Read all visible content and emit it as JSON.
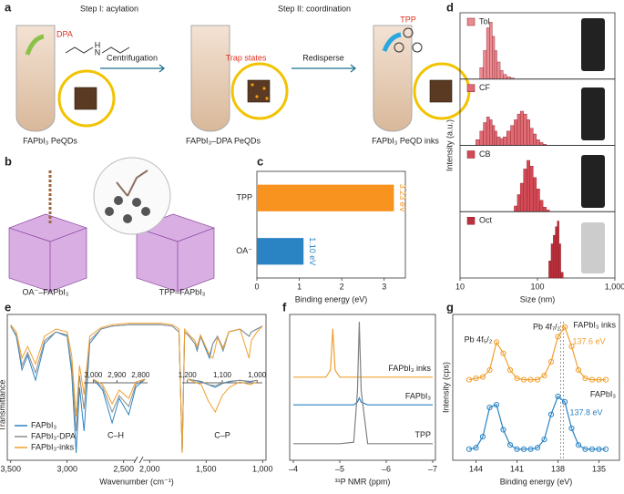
{
  "illustrations": {
    "a": {
      "panel": "a",
      "step1": "Step I: acylation",
      "step2": "Step II: coordination",
      "dpa": "DPA",
      "amine": "N",
      "amine_h": "H",
      "centrifugation": "Centrifugation",
      "trap_states": "Trap states",
      "redisperse": "Redisperse",
      "tpp": "TPP",
      "tube1": "FAPbI₃ PeQDs",
      "tube2": "FAPbI₃–DPA PeQDs",
      "tube3": "FAPbI₃ PeQD inks"
    },
    "b": {
      "panel": "b",
      "left": "OA⁻–FAPbI₃",
      "right": "TPP–FAPbI₃"
    }
  },
  "chart_data": [
    {
      "panel": "c",
      "type": "bar",
      "orientation": "horizontal",
      "categories": [
        "TPP",
        "OA⁻"
      ],
      "values": [
        3.23,
        1.1
      ],
      "value_labels": [
        "3.23 eV",
        "1.10 eV"
      ],
      "colors": [
        "#f7931e",
        "#2a84c3"
      ],
      "xlim": [
        0,
        3.5
      ],
      "xticks": [
        0,
        1,
        2,
        3
      ],
      "xlabel": "Binding energy (eV)"
    },
    {
      "panel": "d",
      "type": "histogram",
      "xscale": "log",
      "xlim": [
        10,
        1000
      ],
      "xticks": [
        10,
        100,
        {
          "value": 1000,
          "label": "1,000"
        }
      ],
      "ylim": [
        0,
        1.1
      ],
      "xlabel": "Size (nm)",
      "ylabel": "Intensity (a.u.)",
      "series": [
        {
          "name": "Tol",
          "color": "#e98b92",
          "bins": [
            18,
            20,
            22,
            24,
            26,
            28,
            30,
            33,
            36,
            40,
            45,
            50
          ],
          "values": [
            0.2,
            0.5,
            0.9,
            1.0,
            0.75,
            0.5,
            0.3,
            0.15,
            0.08,
            0.04,
            0.02
          ]
        },
        {
          "name": "CF",
          "color": "#df6b74",
          "bins": [
            16,
            18,
            20,
            22,
            24,
            26,
            28,
            30,
            33,
            36,
            40,
            45,
            50,
            55,
            60,
            66,
            73,
            80,
            88,
            97,
            107,
            118,
            130
          ],
          "values": [
            0.1,
            0.25,
            0.4,
            0.5,
            0.45,
            0.35,
            0.25,
            0.15,
            0.12,
            0.15,
            0.25,
            0.35,
            0.45,
            0.55,
            0.6,
            0.55,
            0.45,
            0.3,
            0.2,
            0.1,
            0.05,
            0.02
          ]
        },
        {
          "name": "CB",
          "color": "#d24a55",
          "bins": [
            50,
            55,
            60,
            66,
            73,
            80,
            88,
            97,
            107,
            118,
            130,
            143
          ],
          "values": [
            0.1,
            0.3,
            0.5,
            0.75,
            0.9,
            0.8,
            0.6,
            0.4,
            0.2,
            0.08,
            0.03
          ]
        },
        {
          "name": "Oct",
          "color": "#b9313c",
          "bins": [
            140,
            150,
            160,
            170,
            180,
            190,
            200,
            215
          ],
          "values": [
            0.3,
            0.6,
            0.75,
            0.9,
            1.0,
            0.6,
            0.1
          ]
        }
      ]
    },
    {
      "panel": "e",
      "type": "line",
      "xlim": [
        3530,
        970
      ],
      "axis_break": [
        2400,
        2050
      ],
      "xticks": [
        {
          "value": 3500,
          "label": "3,500"
        },
        {
          "value": 3000,
          "label": "3,000"
        },
        {
          "value": 2500,
          "label": "2,500"
        },
        {
          "value": 2000,
          "label": "2,000"
        },
        {
          "value": 1500,
          "label": "1,500"
        },
        {
          "value": 1000,
          "label": "1,000"
        }
      ],
      "ylim": [
        0,
        1
      ],
      "xlabel": "Wavenumber (cm⁻¹)",
      "ylabel": "Transmittance",
      "legend": "lower left",
      "x": [
        3500,
        3450,
        3400,
        3350,
        3280,
        3200,
        3100,
        3000,
        2960,
        2920,
        2890,
        2850,
        2800,
        2700,
        2600,
        2450,
        2000,
        1900,
        1800,
        1740,
        1712,
        1690,
        1650,
        1600,
        1580,
        1550,
        1470,
        1440,
        1400,
        1350,
        1300,
        1200,
        1120,
        1100,
        1050,
        1000
      ],
      "series": [
        {
          "name": "FAPbI₃",
          "color": "#2a84c3",
          "values": [
            0.92,
            0.85,
            0.62,
            0.72,
            0.55,
            0.8,
            0.88,
            0.85,
            0.6,
            0.05,
            0.5,
            0.2,
            0.8,
            0.9,
            0.92,
            0.93,
            0.93,
            0.93,
            0.92,
            0.88,
            0.05,
            0.88,
            0.85,
            0.8,
            0.75,
            0.85,
            0.7,
            0.8,
            0.85,
            0.75,
            0.88,
            0.9,
            0.85,
            0.88,
            0.9,
            0.92
          ]
        },
        {
          "name": "FAPbI₃-DPA",
          "color": "#8c8c8c",
          "values": [
            0.92,
            0.86,
            0.65,
            0.74,
            0.6,
            0.82,
            0.88,
            0.86,
            0.65,
            0.2,
            0.58,
            0.35,
            0.82,
            0.9,
            0.92,
            0.93,
            0.93,
            0.93,
            0.92,
            0.88,
            0.05,
            0.88,
            0.85,
            0.8,
            0.76,
            0.85,
            0.72,
            0.8,
            0.85,
            0.77,
            0.88,
            0.9,
            0.85,
            0.88,
            0.9,
            0.92
          ]
        },
        {
          "name": "FAPbI₃-inks",
          "color": "#f0a030",
          "values": [
            0.93,
            0.88,
            0.7,
            0.78,
            0.66,
            0.85,
            0.9,
            0.88,
            0.72,
            0.3,
            0.65,
            0.45,
            0.85,
            0.91,
            0.93,
            0.94,
            0.94,
            0.94,
            0.93,
            0.9,
            0.05,
            0.9,
            0.86,
            0.82,
            0.78,
            0.86,
            0.72,
            0.7,
            0.84,
            0.76,
            0.88,
            0.9,
            0.7,
            0.82,
            0.88,
            0.92
          ]
        }
      ],
      "insets": [
        {
          "label": "C–H",
          "xlim": [
            3040,
            2770
          ],
          "xticks": [
            {
              "value": 3000,
              "label": "3,000"
            },
            {
              "value": 2900,
              "label": "2,900"
            },
            {
              "value": 2800,
              "label": "2,800"
            }
          ],
          "x": [
            3000,
            2960,
            2920,
            2890,
            2850,
            2820,
            2780
          ],
          "values": [
            [
              0.9,
              0.7,
              0.1,
              0.55,
              0.25,
              0.75,
              0.9
            ],
            [
              0.9,
              0.75,
              0.3,
              0.6,
              0.4,
              0.8,
              0.9
            ],
            [
              0.9,
              0.8,
              0.45,
              0.7,
              0.55,
              0.85,
              0.9
            ]
          ]
        },
        {
          "label": "C–P",
          "xlim": [
            1215,
            985
          ],
          "xticks": [
            {
              "value": 1200,
              "label": "1,200"
            },
            {
              "value": 1100,
              "label": "1,100"
            },
            {
              "value": 1000,
              "label": "1,000"
            }
          ],
          "x": [
            1200,
            1160,
            1140,
            1120,
            1100,
            1080,
            1050,
            1020,
            1000
          ],
          "values": [
            [
              0.9,
              0.85,
              0.8,
              0.75,
              0.82,
              0.85,
              0.88,
              0.85,
              0.88
            ],
            [
              0.9,
              0.86,
              0.8,
              0.78,
              0.83,
              0.86,
              0.88,
              0.86,
              0.88
            ],
            [
              0.9,
              0.8,
              0.5,
              0.3,
              0.6,
              0.75,
              0.85,
              0.8,
              0.85
            ]
          ]
        }
      ]
    },
    {
      "panel": "f",
      "type": "line",
      "xlim": [
        -4,
        -7
      ],
      "xticks": [
        {
          "value": -4,
          "label": "–4"
        },
        {
          "value": -5,
          "label": "–5"
        },
        {
          "value": -6,
          "label": "–6"
        },
        {
          "value": -7,
          "label": "–7"
        }
      ],
      "ylim": [
        0,
        1
      ],
      "xlabel": "³¹P NMR (ppm)",
      "x": [
        -4,
        -4.7,
        -4.8,
        -4.85,
        -4.9,
        -5.0,
        -5.3,
        -5.38,
        -5.42,
        -5.46,
        -5.6,
        -7
      ],
      "series": [
        {
          "name": "FAPbI₃ inks",
          "color": "#f0a030",
          "values": [
            0.6,
            0.6,
            0.65,
            0.95,
            0.65,
            0.6,
            0.6,
            0.6,
            0.6,
            0.6,
            0.6,
            0.6
          ]
        },
        {
          "name": "FAPbI₃",
          "color": "#2a84c3",
          "values": [
            0.4,
            0.4,
            0.4,
            0.4,
            0.4,
            0.4,
            0.4,
            0.42,
            0.45,
            0.42,
            0.4,
            0.4
          ]
        },
        {
          "name": "TPP",
          "color": "#808080",
          "values": [
            0.12,
            0.12,
            0.12,
            0.12,
            0.12,
            0.12,
            0.13,
            0.5,
            1.0,
            0.5,
            0.12,
            0.12
          ]
        }
      ]
    },
    {
      "panel": "g",
      "type": "scatter",
      "xlim": [
        145.7,
        133.5
      ],
      "xticks": [
        144,
        141,
        138,
        135
      ],
      "ylim": [
        0,
        1.05
      ],
      "xlabel": "Binding energy (eV)",
      "ylabel": "Intensity (cps)",
      "x": [
        144.5,
        144,
        143.5,
        143,
        142.5,
        142,
        141.5,
        141,
        140.5,
        140,
        139.5,
        139,
        138.5,
        138,
        137.5,
        137,
        136.5,
        136,
        135.5,
        135,
        134.5
      ],
      "series": [
        {
          "name": "FAPbI₃ inks",
          "color": "#f0a030",
          "values": [
            0.58,
            0.59,
            0.6,
            0.65,
            0.85,
            0.77,
            0.65,
            0.59,
            0.58,
            0.58,
            0.58,
            0.61,
            0.71,
            0.89,
            0.96,
            0.82,
            0.65,
            0.59,
            0.58,
            0.58,
            0.58
          ]
        },
        {
          "name": "FAPbI₃",
          "color": "#2a84c3",
          "values": [
            0.08,
            0.09,
            0.17,
            0.38,
            0.4,
            0.22,
            0.11,
            0.08,
            0.08,
            0.08,
            0.09,
            0.15,
            0.33,
            0.46,
            0.42,
            0.23,
            0.11,
            0.08,
            0.08,
            0.08,
            0.08
          ]
        }
      ],
      "annotations": [
        "Pb 4f₅/₂",
        "Pb 4f₇/₂"
      ],
      "peak_labels": [
        {
          "value": 137.6,
          "label": "137.6 eV"
        },
        {
          "value": 137.8,
          "label": "137.8 eV"
        }
      ]
    }
  ]
}
